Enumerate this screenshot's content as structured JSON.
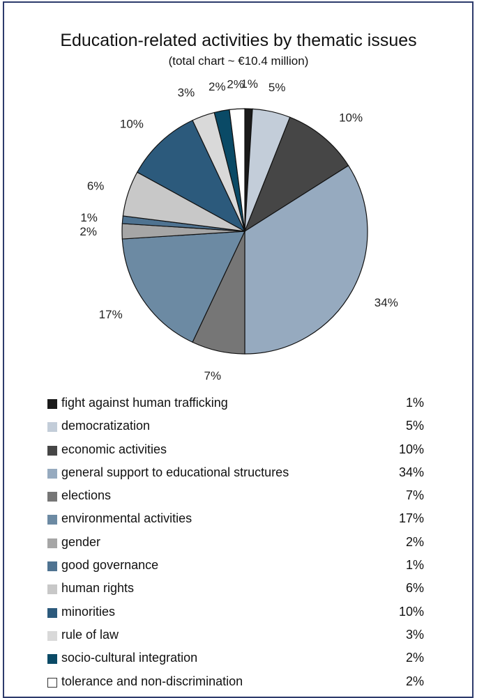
{
  "chart_data": {
    "type": "pie",
    "title": "Education-related activities by thematic issues",
    "subtitle": "(total chart ~ €10.4 million)",
    "slices": [
      {
        "label": "fight against human trafficking",
        "value": 1,
        "pct_label": "1%",
        "color": "#1a1a1a"
      },
      {
        "label": "democratization",
        "value": 5,
        "pct_label": "5%",
        "color": "#c3cdd9"
      },
      {
        "label": "economic activities",
        "value": 10,
        "pct_label": "10%",
        "color": "#464646"
      },
      {
        "label": "general support to educational structures",
        "value": 34,
        "pct_label": "34%",
        "color": "#96aabf"
      },
      {
        "label": "elections",
        "value": 7,
        "pct_label": "7%",
        "color": "#767676"
      },
      {
        "label": "environmental activities",
        "value": 17,
        "pct_label": "17%",
        "color": "#6c8aa3"
      },
      {
        "label": "gender",
        "value": 2,
        "pct_label": "2%",
        "color": "#a6a6a6"
      },
      {
        "label": "good governance",
        "value": 1,
        "pct_label": "1%",
        "color": "#4f7391"
      },
      {
        "label": "human rights",
        "value": 6,
        "pct_label": "6%",
        "color": "#c8c8c8"
      },
      {
        "label": "minorities",
        "value": 10,
        "pct_label": "10%",
        "color": "#2c5a7c"
      },
      {
        "label": "rule of law",
        "value": 3,
        "pct_label": "3%",
        "color": "#d9d9d9"
      },
      {
        "label": "socio-cultural integration",
        "value": 2,
        "pct_label": "2%",
        "color": "#0a4a66"
      },
      {
        "label": "tolerance and non-discrimination",
        "value": 2,
        "pct_label": "2%",
        "color": "#ffffff"
      }
    ],
    "legend_position": "bottom"
  }
}
